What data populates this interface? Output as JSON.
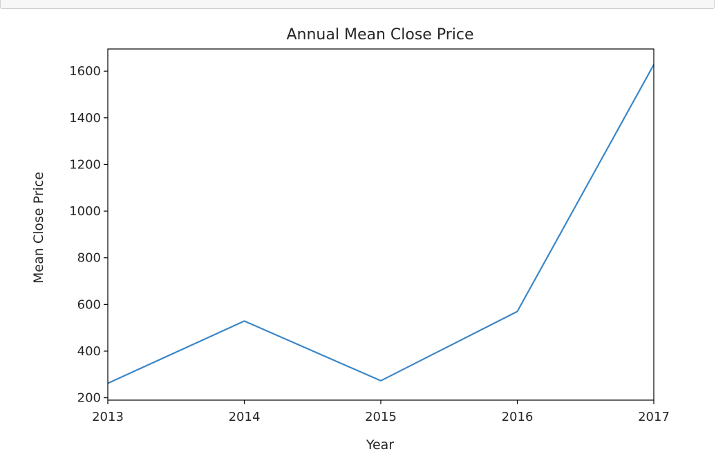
{
  "chart_data": {
    "type": "line",
    "title": "Annual Mean Close Price",
    "xlabel": "Year",
    "ylabel": "Mean Close Price",
    "x": [
      2013,
      2014,
      2015,
      2016,
      2017
    ],
    "x_ticks": [
      "2013",
      "2014",
      "2015",
      "2016",
      "2017"
    ],
    "y_ticks": [
      "200",
      "400",
      "600",
      "800",
      "1000",
      "1200",
      "1400",
      "1600"
    ],
    "xlim": [
      2013,
      2017
    ],
    "ylim": [
      190,
      1695
    ],
    "grid": false,
    "series": [
      {
        "values": [
          262,
          529,
          273,
          570,
          1628
        ],
        "color": "#3a86c8"
      }
    ]
  }
}
